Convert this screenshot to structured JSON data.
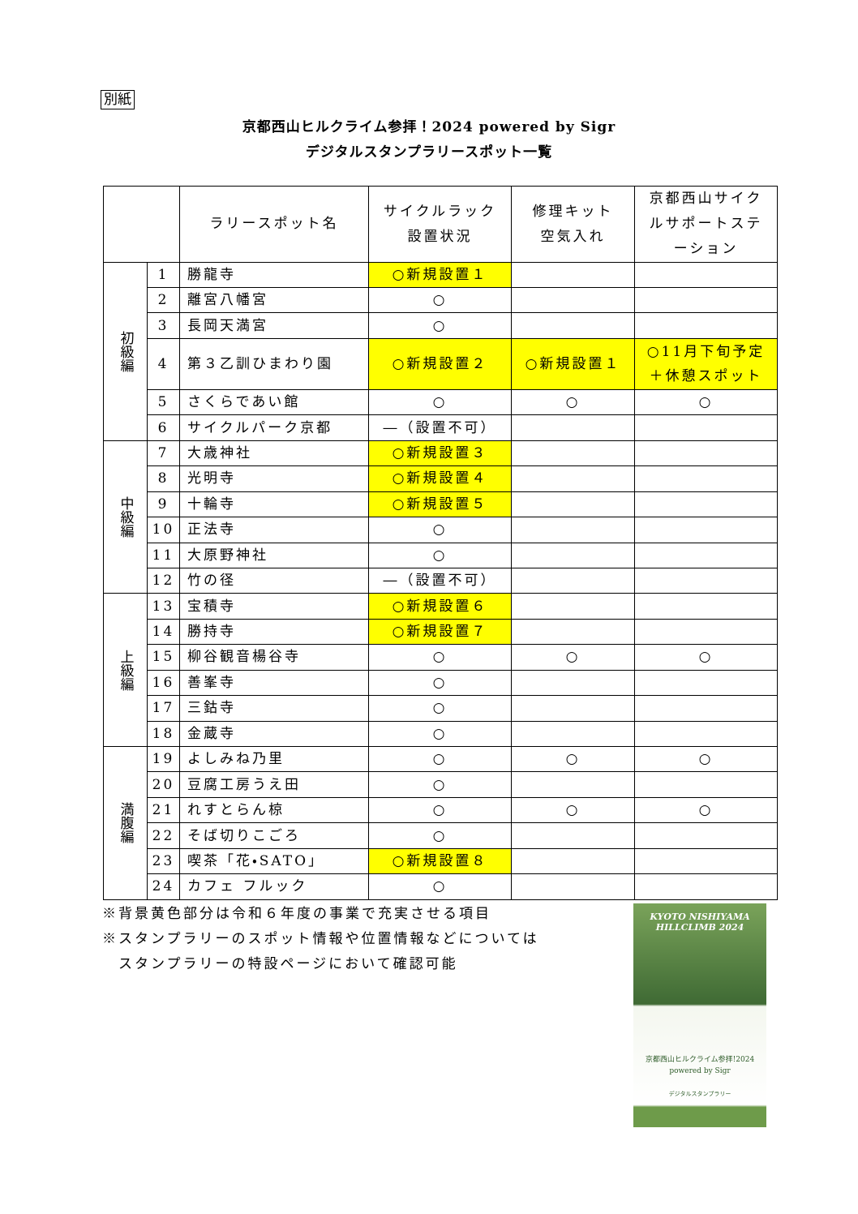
{
  "annex_label": "別紙",
  "title_lines": [
    "京都西山ヒルクライム参拝！2024 powered by Sigr",
    "デジタルスタンプラリースポット一覧"
  ],
  "table": {
    "header": {
      "name": "ラリースポット名",
      "rack": [
        "サイクルラック",
        "設置状況"
      ],
      "kit": [
        "修理キット",
        "空気入れ"
      ],
      "station": [
        "京都西山サイク",
        "ルサポートステ",
        "ーション"
      ]
    },
    "highlight_color": "#ffff00",
    "groups": [
      {
        "label": "初級編",
        "rows": [
          {
            "no": 1,
            "name": "勝龍寺",
            "rack": "○新規設置１",
            "highlight": [
              "rack"
            ]
          },
          {
            "no": 2,
            "name": "離宮八幡宮",
            "rack": "○"
          },
          {
            "no": 3,
            "name": "長岡天満宮",
            "rack": "○"
          },
          {
            "no": 4,
            "name": "第３乙訓ひまわり園",
            "rack": "○新規設置２",
            "kit": "○新規設置１",
            "station": [
              "○11月下旬予定",
              "＋休憩スポット"
            ],
            "highlight": [
              "rack",
              "kit",
              "station"
            ]
          },
          {
            "no": 5,
            "name": "さくらであい館",
            "rack": "○",
            "kit": "○",
            "station": "○"
          },
          {
            "no": 6,
            "name": "サイクルパーク京都",
            "rack": "―（設置不可）"
          }
        ]
      },
      {
        "label": "中級編",
        "rows": [
          {
            "no": 7,
            "name": "大歳神社",
            "rack": "○新規設置３",
            "highlight": [
              "rack"
            ]
          },
          {
            "no": 8,
            "name": "光明寺",
            "rack": "○新規設置４",
            "highlight": [
              "rack"
            ]
          },
          {
            "no": 9,
            "name": "十輪寺",
            "rack": "○新規設置５",
            "highlight": [
              "rack"
            ]
          },
          {
            "no": 10,
            "name": "正法寺",
            "rack": "○"
          },
          {
            "no": 11,
            "name": "大原野神社",
            "rack": "○"
          },
          {
            "no": 12,
            "name": "竹の径",
            "rack": "―（設置不可）"
          }
        ]
      },
      {
        "label": "上級編",
        "rows": [
          {
            "no": 13,
            "name": "宝積寺",
            "rack": "○新規設置６",
            "highlight": [
              "rack"
            ]
          },
          {
            "no": 14,
            "name": "勝持寺",
            "rack": "○新規設置７",
            "highlight": [
              "rack"
            ]
          },
          {
            "no": 15,
            "name": "柳谷観音楊谷寺",
            "rack": "○",
            "kit": "○",
            "station": "○"
          },
          {
            "no": 16,
            "name": "善峯寺",
            "rack": "○"
          },
          {
            "no": 17,
            "name": "三鈷寺",
            "rack": "○"
          },
          {
            "no": 18,
            "name": "金蔵寺",
            "rack": "○"
          }
        ]
      },
      {
        "label": "満腹編",
        "rows": [
          {
            "no": 19,
            "name": "よしみね乃里",
            "rack": "○",
            "kit": "○",
            "station": "○"
          },
          {
            "no": 20,
            "name": "豆腐工房うえ田",
            "rack": "○"
          },
          {
            "no": 21,
            "name": "れすとらん椋",
            "rack": "○",
            "kit": "○",
            "station": "○"
          },
          {
            "no": 22,
            "name": "そば切りこごろ",
            "rack": "○"
          },
          {
            "no": 23,
            "name": "喫茶「花・SATO」",
            "rack": "○新規設置８",
            "highlight": [
              "rack"
            ]
          },
          {
            "no": 24,
            "name": "カフェ フルック",
            "rack": "○"
          }
        ]
      }
    ]
  },
  "notes": [
    "※背景黄色部分は令和６年度の事業で充実させる項目",
    "※スタンプラリーのスポット情報や位置情報などについては",
    "スタンプラリーの特設ページにおいて確認可能"
  ],
  "image": {
    "title": [
      "KYOTO NISHIYAMA",
      "HILLCLIMB 2024"
    ],
    "caption": [
      "京都西山ヒルクライム参拝!2024",
      "powered by Sigr"
    ],
    "sub": "デジタルスタンプラリー"
  }
}
